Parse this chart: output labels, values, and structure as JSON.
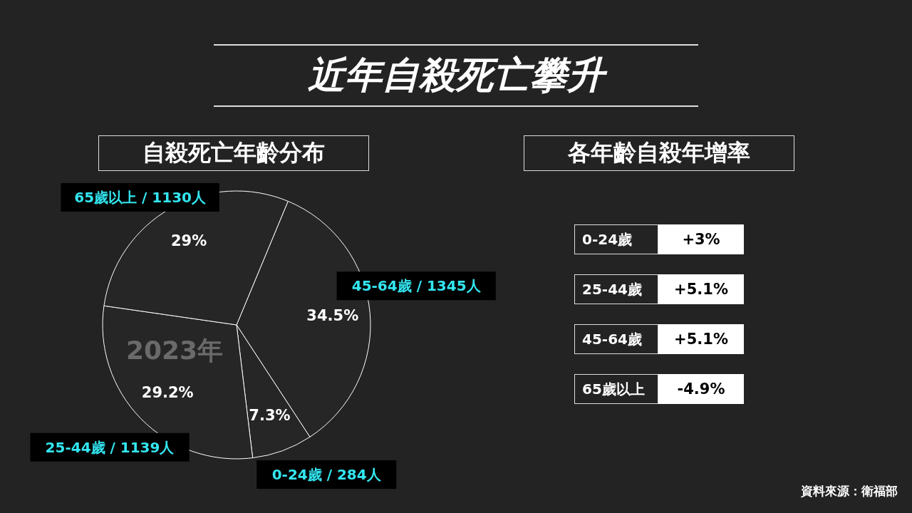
{
  "chart_data": [
    {
      "type": "pie",
      "title": "近年自殺死亡攀升",
      "subtitle": "自殺死亡年齡分布",
      "categories": [
        "45-64歲 / 1345人",
        "0-24歲 / 284人",
        "25-44歲 / 1139人",
        "65歲以上 / 1130人"
      ],
      "values": [
        34.5,
        7.3,
        29.2,
        29
      ],
      "value_labels": [
        "34.5%",
        "7.3%",
        "29.2%",
        "29%"
      ],
      "colors": [
        "#262626",
        "#262626",
        "#262626",
        "#262626"
      ],
      "annotations": [
        "2023年"
      ]
    },
    {
      "type": "other",
      "title": "各年齡自殺年增率",
      "categories": [
        "0-24歲",
        "25-44歲",
        "45-64歲",
        "65歲以上"
      ],
      "value_labels": [
        "+3%",
        "+5.1%",
        "+5.1%",
        "-4.9%"
      ],
      "annotations": [
        "資料來源：衛福部"
      ]
    }
  ]
}
